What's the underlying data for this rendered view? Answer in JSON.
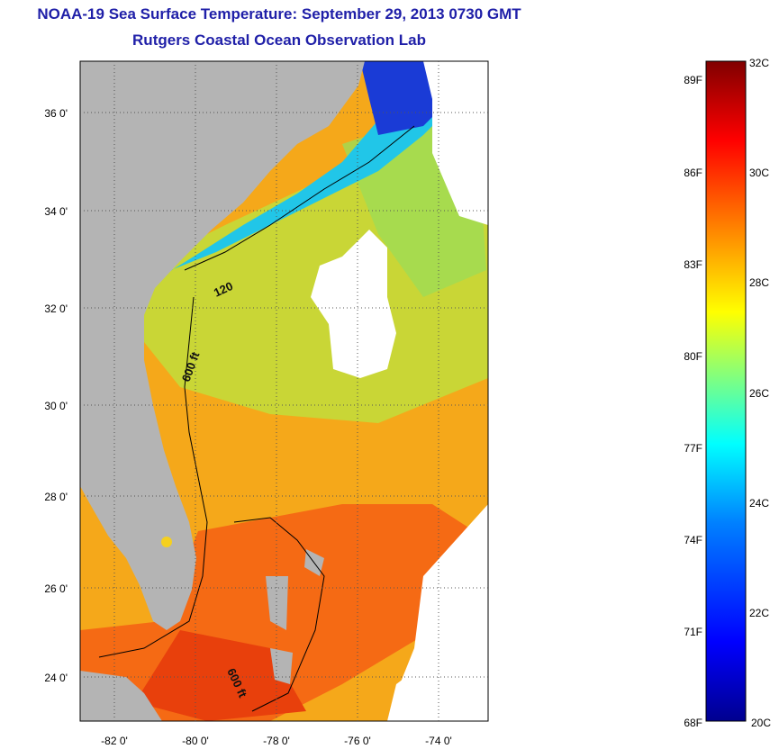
{
  "header": {
    "title": "NOAA-19 Sea Surface Temperature:  September 29, 2013 0730 GMT",
    "subtitle": "Rutgers Coastal Ocean Observation Lab"
  },
  "map": {
    "lat_ticks": [
      "36 0'",
      "34 0'",
      "32 0'",
      "30 0'",
      "28 0'",
      "26 0'",
      "24 0'"
    ],
    "lon_ticks": [
      "-82 0'",
      "-80 0'",
      "-78 0'",
      "-76 0'",
      "-74 0'"
    ],
    "contour_labels": [
      "120",
      "600 ft",
      "600 ft"
    ],
    "colors": {
      "land": "#b4b4b4",
      "no_data": "#ffffff",
      "gridline": "#555555"
    }
  },
  "colorbar": {
    "celsius_labels": [
      "32C",
      "30C",
      "28C",
      "26C",
      "24C",
      "22C",
      "20C"
    ],
    "fahrenheit_labels": [
      "89F",
      "86F",
      "83F",
      "80F",
      "77F",
      "74F",
      "71F",
      "68F"
    ],
    "range_c": [
      20,
      32
    ],
    "colors": [
      "#00008f",
      "#0000ff",
      "#0080ff",
      "#00ffff",
      "#80ff80",
      "#ffff00",
      "#ff8000",
      "#ff0000",
      "#800000"
    ]
  }
}
